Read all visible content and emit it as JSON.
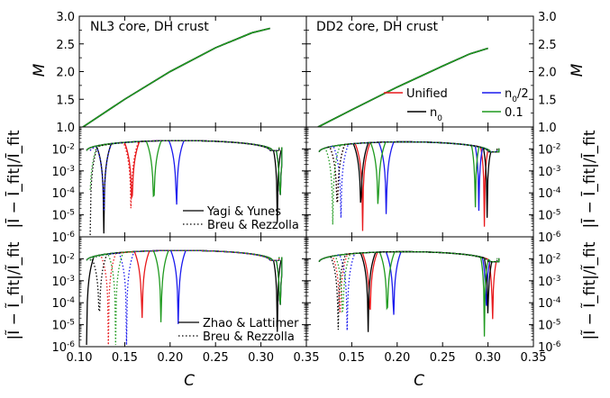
{
  "panel_titles": {
    "top_left": "NL3 core, DH crust",
    "top_right": "DD2 core, DH crust"
  },
  "axis_labels": {
    "x": "C",
    "top_left": "M",
    "top_right": "M",
    "mid_left": "|Ī − Ī_fit|/Ī_fit",
    "mid_right": "|Ī − Ī_fit|/Ī_fit",
    "bot_left": "|Ĩ − Ĩ_fit|/Ĩ_fit",
    "bot_right": "|Ĩ − Ĩ_fit|/Ĩ_fit"
  },
  "legends": {
    "eos": [
      {
        "label": "Unified",
        "color": "#e8191c"
      },
      {
        "label": "n0/2",
        "color": "#1a1aee"
      },
      {
        "label": "n0",
        "color": "#000000"
      },
      {
        "label": "0.1",
        "color": "#1f9a1f"
      }
    ],
    "mid_fits": [
      {
        "label": "Yagi & Yunes",
        "style": "solid"
      },
      {
        "label": "Breu & Rezzolla",
        "style": "dotted"
      }
    ],
    "bot_fits": [
      {
        "label": "Zhao & Lattimer",
        "style": "solid"
      },
      {
        "label": "Breu & Rezzolla",
        "style": "dotted"
      }
    ]
  },
  "chart_data": [
    {
      "type": "line",
      "panel": "top-left",
      "title": "NL3 core, DH crust",
      "xlabel": "C",
      "ylabel": "M",
      "xlim": [
        0.1,
        0.35
      ],
      "ylim": [
        1.0,
        3.0
      ],
      "x_ticks": [
        "0.10",
        "0.15",
        "0.20",
        "0.25",
        "0.30",
        "0.35"
      ],
      "y_ticks": [
        "1.0",
        "1.5",
        "2.0",
        "2.5",
        "3.0"
      ],
      "series": [
        {
          "name": "Unified",
          "x": [
            0.104,
            0.15,
            0.2,
            0.25,
            0.29,
            0.31
          ],
          "y": [
            1.0,
            1.5,
            2.0,
            2.43,
            2.7,
            2.78
          ]
        },
        {
          "name": "n0/2",
          "x": [
            0.104,
            0.15,
            0.2,
            0.25,
            0.29,
            0.31
          ],
          "y": [
            1.0,
            1.5,
            2.0,
            2.43,
            2.7,
            2.78
          ]
        },
        {
          "name": "n0",
          "x": [
            0.104,
            0.15,
            0.2,
            0.25,
            0.29,
            0.31
          ],
          "y": [
            1.0,
            1.5,
            2.0,
            2.43,
            2.7,
            2.78
          ]
        },
        {
          "name": "0.1",
          "x": [
            0.104,
            0.15,
            0.2,
            0.25,
            0.29,
            0.31
          ],
          "y": [
            1.0,
            1.5,
            2.0,
            2.43,
            2.7,
            2.78
          ]
        }
      ]
    },
    {
      "type": "line",
      "panel": "top-right",
      "title": "DD2 core, DH crust",
      "xlabel": "C",
      "ylabel": "M",
      "xlim": [
        0.1,
        0.35
      ],
      "ylim": [
        1.0,
        3.0
      ],
      "x_ticks": [
        "0.10",
        "0.15",
        "0.20",
        "0.25",
        "0.30",
        "0.35"
      ],
      "y_ticks": [
        "1.0",
        "1.5",
        "2.0",
        "2.5",
        "3.0"
      ],
      "series": [
        {
          "name": "Unified",
          "x": [
            0.113,
            0.15,
            0.2,
            0.25,
            0.28,
            0.3
          ],
          "y": [
            1.0,
            1.31,
            1.72,
            2.1,
            2.32,
            2.42
          ]
        },
        {
          "name": "n0/2",
          "x": [
            0.113,
            0.15,
            0.2,
            0.25,
            0.28,
            0.3
          ],
          "y": [
            1.0,
            1.31,
            1.72,
            2.1,
            2.32,
            2.42
          ]
        },
        {
          "name": "n0",
          "x": [
            0.113,
            0.15,
            0.2,
            0.25,
            0.28,
            0.3
          ],
          "y": [
            1.0,
            1.31,
            1.72,
            2.1,
            2.32,
            2.42
          ]
        },
        {
          "name": "0.1",
          "x": [
            0.113,
            0.15,
            0.2,
            0.25,
            0.28,
            0.3
          ],
          "y": [
            1.0,
            1.31,
            1.72,
            2.1,
            2.32,
            2.42
          ]
        }
      ]
    },
    {
      "type": "line",
      "panel": "middle-left",
      "yscale": "log",
      "xlabel": "C",
      "ylabel": "|Ī − Ī_fit|/Ī_fit",
      "xlim": [
        0.1,
        0.35
      ],
      "ylim": [
        1e-06,
        0.1
      ],
      "y_ticks": [
        "10^-6",
        "10^-5",
        "10^-4",
        "10^-3",
        "10^-2"
      ],
      "series": [
        {
          "name": "Unified (Yagi & Yunes)",
          "style": "solid",
          "dips": [
            0.158,
            0.321
          ],
          "end_x": 0.323
        },
        {
          "name": "n0/2 (Yagi & Yunes)",
          "style": "solid",
          "dips": [
            0.207,
            0.321
          ],
          "end_x": 0.323
        },
        {
          "name": "n0 (Yagi & Yunes)",
          "style": "solid",
          "dips": [
            0.127,
            0.318
          ],
          "end_x": 0.323
        },
        {
          "name": "0.1 (Yagi & Yunes)",
          "style": "solid",
          "dips": [
            0.182,
            0.321
          ],
          "end_x": 0.323
        },
        {
          "name": "Unified (Breu & Rezzolla)",
          "style": "dotted",
          "dips": [
            0.157
          ],
          "end_x": 0.32
        },
        {
          "name": "n0/2 (Breu & Rezzolla)",
          "style": "dotted",
          "dips": [
            0.127
          ],
          "end_x": 0.32
        },
        {
          "name": "n0 (Breu & Rezzolla)",
          "style": "dotted",
          "dips": [
            0.112
          ],
          "end_x": 0.32
        },
        {
          "name": "0.1 (Breu & Rezzolla)",
          "style": "dotted",
          "dips": [
            0.111
          ],
          "end_x": 0.32
        }
      ]
    },
    {
      "type": "line",
      "panel": "middle-right",
      "yscale": "log",
      "xlabel": "C",
      "ylabel": "|Ī − Ī_fit|/Ī_fit",
      "xlim": [
        0.1,
        0.35
      ],
      "ylim": [
        1e-06,
        0.1
      ],
      "y_ticks": [
        "10^-6",
        "10^-5",
        "10^-4",
        "10^-3",
        "10^-2"
      ],
      "series": [
        {
          "name": "Unified (Yagi & Yunes)",
          "style": "solid",
          "dips": [
            0.162,
            0.296
          ],
          "end_x": 0.312
        },
        {
          "name": "n0/2 (Yagi & Yunes)",
          "style": "solid",
          "dips": [
            0.188,
            0.29
          ],
          "end_x": 0.312
        },
        {
          "name": "n0 (Yagi & Yunes)",
          "style": "solid",
          "dips": [
            0.16,
            0.299
          ],
          "end_x": 0.312
        },
        {
          "name": "0.1 (Yagi & Yunes)",
          "style": "solid",
          "dips": [
            0.179,
            0.286
          ],
          "end_x": 0.312
        },
        {
          "name": "Unified (Breu & Rezzolla)",
          "style": "dotted",
          "dips": [
            0.134
          ],
          "end_x": 0.31
        },
        {
          "name": "n0/2 (Breu & Rezzolla)",
          "style": "dotted",
          "dips": [
            0.138
          ],
          "end_x": 0.31
        },
        {
          "name": "n0 (Breu & Rezzolla)",
          "style": "dotted",
          "dips": [
            0.134
          ],
          "end_x": 0.31
        },
        {
          "name": "0.1 (Breu & Rezzolla)",
          "style": "dotted",
          "dips": [
            0.129
          ],
          "end_x": 0.31
        }
      ]
    },
    {
      "type": "line",
      "panel": "bottom-left",
      "yscale": "log",
      "xlabel": "C",
      "ylabel": "|Ĩ − Ĩ_fit|/Ĩ_fit",
      "xlim": [
        0.1,
        0.35
      ],
      "ylim": [
        1e-06,
        0.1
      ],
      "x_ticks": [
        "0.10",
        "0.15",
        "0.20",
        "0.25",
        "0.30",
        "0.35"
      ],
      "y_ticks": [
        "10^-6",
        "10^-5",
        "10^-4",
        "10^-3",
        "10^-2"
      ],
      "series": [
        {
          "name": "Unified (Zhao & Lattimer)",
          "style": "solid",
          "dips": [
            0.169,
            0.321
          ],
          "end_x": 0.323
        },
        {
          "name": "n0/2 (Zhao & Lattimer)",
          "style": "solid",
          "dips": [
            0.209,
            0.321
          ],
          "end_x": 0.323
        },
        {
          "name": "n0 (Zhao & Lattimer)",
          "style": "solid",
          "dips": [
            0.108,
            0.318
          ],
          "end_x": 0.323
        },
        {
          "name": "0.1 (Zhao & Lattimer)",
          "style": "solid",
          "dips": [
            0.19,
            0.321
          ],
          "end_x": 0.323
        },
        {
          "name": "Unified (Breu & Rezzolla)",
          "style": "dotted",
          "dips": [
            0.132
          ],
          "end_x": 0.32
        },
        {
          "name": "n0/2 (Breu & Rezzolla)",
          "style": "dotted",
          "dips": [
            0.152
          ],
          "end_x": 0.32
        },
        {
          "name": "n0 (Breu & Rezzolla)",
          "style": "dotted",
          "dips": [
            0.122
          ],
          "end_x": 0.32
        },
        {
          "name": "0.1 (Breu & Rezzolla)",
          "style": "dotted",
          "dips": [
            0.14
          ],
          "end_x": 0.32
        }
      ]
    },
    {
      "type": "line",
      "panel": "bottom-right",
      "yscale": "log",
      "xlabel": "C",
      "ylabel": "|Ĩ − Ĩ_fit|/Ĩ_fit",
      "xlim": [
        0.1,
        0.35
      ],
      "ylim": [
        1e-06,
        0.1
      ],
      "x_ticks": [
        "0.10",
        "0.15",
        "0.20",
        "0.25",
        "0.30",
        "0.35"
      ],
      "y_ticks": [
        "10^-6",
        "10^-5",
        "10^-4",
        "10^-3",
        "10^-2"
      ],
      "series": [
        {
          "name": "Unified (Zhao & Lattimer)",
          "style": "solid",
          "dips": [
            0.17,
            0.305
          ],
          "end_x": 0.312
        },
        {
          "name": "n0/2 (Zhao & Lattimer)",
          "style": "solid",
          "dips": [
            0.196,
            0.298
          ],
          "end_x": 0.312
        },
        {
          "name": "n0 (Zhao & Lattimer)",
          "style": "solid",
          "dips": [
            0.168,
            0.3
          ],
          "end_x": 0.312
        },
        {
          "name": "0.1 (Zhao & Lattimer)",
          "style": "solid",
          "dips": [
            0.189,
            0.296
          ],
          "end_x": 0.312
        },
        {
          "name": "Unified (Breu & Rezzolla)",
          "style": "dotted",
          "dips": [
            0.137
          ],
          "end_x": 0.31
        },
        {
          "name": "n0/2 (Breu & Rezzolla)",
          "style": "dotted",
          "dips": [
            0.145
          ],
          "end_x": 0.31
        },
        {
          "name": "n0 (Breu & Rezzolla)",
          "style": "dotted",
          "dips": [
            0.135
          ],
          "end_x": 0.31
        },
        {
          "name": "0.1 (Breu & Rezzolla)",
          "style": "dotted",
          "dips": [
            0.14
          ],
          "end_x": 0.31
        }
      ]
    }
  ]
}
